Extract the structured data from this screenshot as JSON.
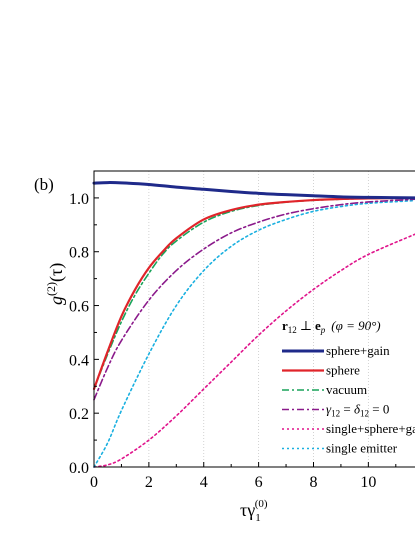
{
  "panel_label": "(b)",
  "chart_data": {
    "type": "line",
    "title": "",
    "xlabel": "τγ",
    "xlabel_sub": "1",
    "xlabel_sup": "(0)",
    "ylabel": "g",
    "ylabel_sup": "(2)",
    "ylabel_arg": "(τ)",
    "xlim": [
      0,
      11.7
    ],
    "ylim": [
      0,
      1.1
    ],
    "xticks": [
      0,
      2,
      4,
      6,
      8,
      10
    ],
    "xtick_labels": [
      "0",
      "2",
      "4",
      "6",
      "8",
      "10"
    ],
    "yticks": [
      0.0,
      0.2,
      0.4,
      0.6,
      0.8,
      1.0
    ],
    "ytick_labels": [
      "0.0",
      "0.2",
      "0.4",
      "0.6",
      "0.8",
      "1.0"
    ],
    "grid": "vertical dotted",
    "legend_placement": "lower-right",
    "legend_header": {
      "r": "r",
      "r_sub": "12",
      "perp": "⊥",
      "e": "e",
      "e_sub": "p",
      "phi": "(φ = 90°)"
    },
    "series": [
      {
        "name": "sphere+gain",
        "color": "#1f2a8a",
        "dash": "solid",
        "x": [
          0,
          0.5,
          1,
          2,
          3,
          4,
          5,
          6,
          7,
          8,
          9,
          10,
          11.7
        ],
        "y": [
          1.055,
          1.057,
          1.056,
          1.05,
          1.04,
          1.032,
          1.024,
          1.017,
          1.012,
          1.008,
          1.004,
          1.002,
          1.0
        ]
      },
      {
        "name": "sphere",
        "color": "#e0242a",
        "dash": "solid",
        "x": [
          0,
          0.5,
          1,
          1.5,
          2,
          2.5,
          3,
          4,
          5,
          6,
          7,
          8,
          9,
          10,
          11.7
        ],
        "y": [
          0.29,
          0.43,
          0.56,
          0.66,
          0.74,
          0.8,
          0.85,
          0.92,
          0.955,
          0.975,
          0.985,
          0.992,
          0.996,
          0.998,
          1.0
        ]
      },
      {
        "name": "vacuum",
        "color": "#19a35a",
        "dash": "dashdot",
        "x": [
          0,
          0.5,
          1,
          1.5,
          2,
          2.5,
          3,
          4,
          5,
          6,
          7,
          8,
          9,
          10,
          11.7
        ],
        "y": [
          0.29,
          0.42,
          0.54,
          0.64,
          0.72,
          0.79,
          0.84,
          0.91,
          0.95,
          0.972,
          0.984,
          0.991,
          0.995,
          0.998,
          1.0
        ]
      },
      {
        "name": "γ12 = δ12 = 0",
        "label_parts": [
          "γ",
          "12",
          " = ",
          "δ",
          "12",
          " = 0"
        ],
        "color": "#8b1a8b",
        "dash": "dashdot",
        "x": [
          0,
          0.5,
          1,
          2,
          3,
          4,
          5,
          6,
          7,
          8,
          9,
          10,
          11.7
        ],
        "y": [
          0.25,
          0.37,
          0.47,
          0.62,
          0.73,
          0.81,
          0.87,
          0.91,
          0.94,
          0.96,
          0.975,
          0.985,
          0.995
        ]
      },
      {
        "name": "single+sphere+gain",
        "color": "#e0148c",
        "dash": "dotted",
        "x": [
          0,
          0.5,
          1,
          2,
          3,
          4,
          5,
          6,
          7,
          8,
          9,
          10,
          11.7
        ],
        "y": [
          0.0,
          0.008,
          0.03,
          0.1,
          0.19,
          0.29,
          0.39,
          0.49,
          0.58,
          0.66,
          0.73,
          0.79,
          0.865
        ]
      },
      {
        "name": "single emitter",
        "color": "#1ab0e0",
        "dash": "dotted",
        "x": [
          0,
          0.5,
          1,
          2,
          3,
          4,
          5,
          6,
          7,
          8,
          9,
          10,
          11.7
        ],
        "y": [
          0.0,
          0.09,
          0.21,
          0.42,
          0.6,
          0.73,
          0.82,
          0.88,
          0.92,
          0.95,
          0.968,
          0.98,
          0.99
        ]
      }
    ]
  }
}
